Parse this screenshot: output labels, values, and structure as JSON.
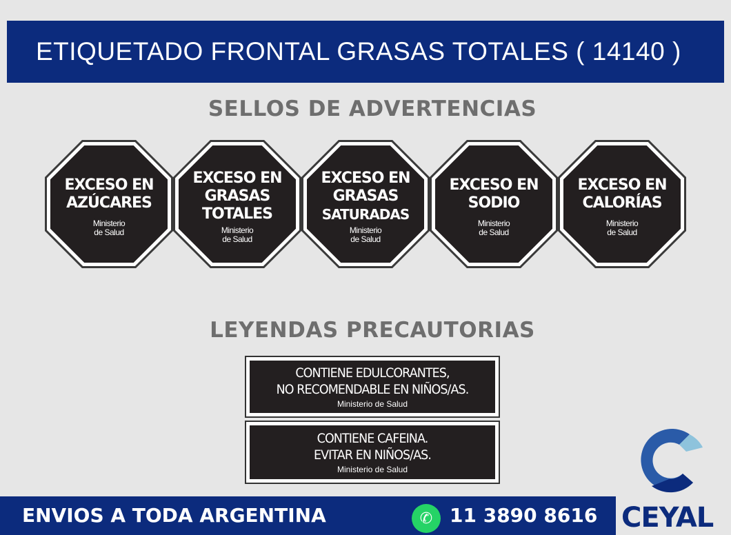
{
  "header": {
    "title": "ETIQUETADO FRONTAL GRASAS TOTALES  ( 14140 )"
  },
  "sellos": {
    "title": "SELLOS DE ADVERTENCIAS",
    "items": [
      {
        "l1": "EXCESO EN",
        "l2": "AZÚCARES",
        "l3": "",
        "m1": "Ministerio",
        "m2": "de Salud"
      },
      {
        "l1": "EXCESO EN",
        "l2": "GRASAS",
        "l3": "TOTALES",
        "m1": "Ministerio",
        "m2": "de Salud"
      },
      {
        "l1": "EXCESO EN",
        "l2": "GRASAS",
        "l3": "SATURADAS",
        "m1": "Ministerio",
        "m2": "de Salud"
      },
      {
        "l1": "EXCESO EN",
        "l2": "SODIO",
        "l3": "",
        "m1": "Ministerio",
        "m2": "de Salud"
      },
      {
        "l1": "EXCESO EN",
        "l2": "CALORÍAS",
        "l3": "",
        "m1": "Ministerio",
        "m2": "de Salud"
      }
    ]
  },
  "leyendas": {
    "title": "LEYENDAS PRECAUTORIAS",
    "items": [
      {
        "l1": "CONTIENE EDULCORANTES,",
        "l2": "NO RECOMENDABLE EN NIÑOS/AS.",
        "m": "Ministerio de Salud"
      },
      {
        "l1": "CONTIENE CAFEINA.",
        "l2": "EVITAR EN NIÑOS/AS.",
        "m": "Ministerio de Salud"
      }
    ]
  },
  "footer": {
    "shipping": "ENVIOS A TODA ARGENTINA",
    "phone": "11 3890 8616",
    "whatsapp_icon": "whatsapp-icon"
  },
  "logo": {
    "text": "CEYAL",
    "colors": {
      "navy": "#0c2b7d",
      "blue": "#2a5ba8",
      "light": "#8ec3dc"
    }
  }
}
